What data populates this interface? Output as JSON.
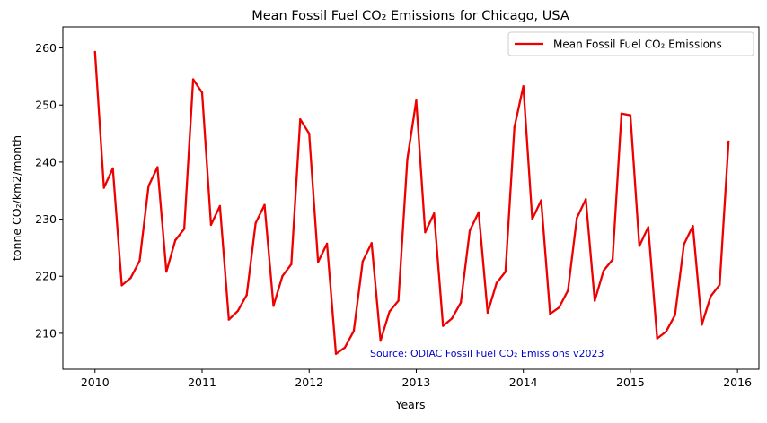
{
  "chart_data": {
    "type": "line",
    "title": "Mean Fossil Fuel CO₂ Emissions for Chicago, USA",
    "xlabel": "Years",
    "ylabel": "tonne CO₂/km2/month",
    "xlim": [
      2009.7,
      2016.2
    ],
    "ylim": [
      203.7,
      263.7
    ],
    "x_ticks": [
      "2010",
      "2011",
      "2012",
      "2013",
      "2014",
      "2015",
      "2016"
    ],
    "y_ticks": [
      "210",
      "220",
      "230",
      "240",
      "250",
      "260"
    ],
    "grid": false,
    "legend_position": "upper right",
    "annotation": "Source: ODIAC Fossil Fuel CO₂ Emissions v2023",
    "colors": {
      "line": "#ee0000",
      "annotation": "#0000cc",
      "axes": "#000000"
    },
    "series": [
      {
        "name": "Mean Fossil Fuel CO₂ Emissions",
        "start": "2010-01",
        "frequency": "monthly",
        "values": [
          259.3,
          235.5,
          238.9,
          218.4,
          219.7,
          222.7,
          235.8,
          239.1,
          220.8,
          226.3,
          228.3,
          254.5,
          252.2,
          229.0,
          232.3,
          212.4,
          213.9,
          216.7,
          229.3,
          232.5,
          214.8,
          220.0,
          222.1,
          247.5,
          245.0,
          222.5,
          225.7,
          206.4,
          207.5,
          210.4,
          222.6,
          225.8,
          208.7,
          213.8,
          215.7,
          240.5,
          250.8,
          227.7,
          231.0,
          211.3,
          212.6,
          215.4,
          228.0,
          231.2,
          213.6,
          218.8,
          220.8,
          246.1,
          253.3,
          230.0,
          233.3,
          213.4,
          214.5,
          217.5,
          230.2,
          233.5,
          215.7,
          221.0,
          222.9,
          248.5,
          248.2,
          225.3,
          228.6,
          209.1,
          210.3,
          213.2,
          225.6,
          228.8,
          211.5,
          216.5,
          218.5,
          243.6
        ]
      }
    ]
  }
}
